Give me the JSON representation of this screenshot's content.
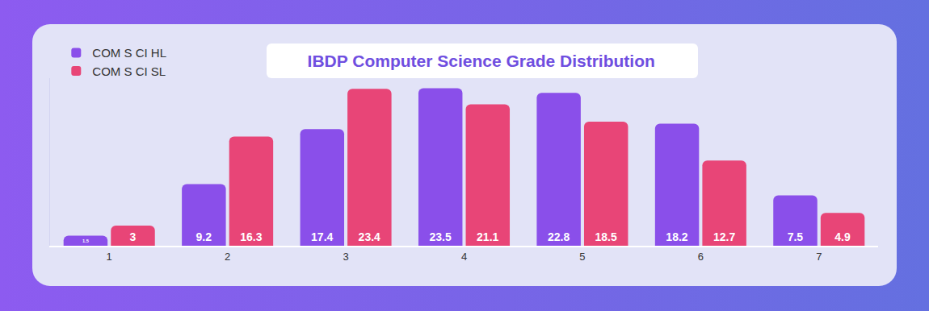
{
  "chart_data": {
    "type": "bar",
    "title": "IBDP Computer Science Grade Distribution",
    "categories": [
      "1",
      "2",
      "3",
      "4",
      "5",
      "6",
      "7"
    ],
    "series": [
      {
        "name": "COM S CI HL",
        "color": "#8a4fea",
        "values": [
          1.5,
          9.2,
          17.4,
          23.5,
          22.8,
          18.2,
          7.5
        ]
      },
      {
        "name": "COM S CI SL",
        "color": "#e84577",
        "values": [
          3,
          16.3,
          23.4,
          21.1,
          18.5,
          12.7,
          4.9
        ]
      }
    ],
    "ylim": [
      0,
      25
    ],
    "yticks": [],
    "grid": false,
    "legend": "top-left",
    "data_labels": true,
    "tick_labels": "x"
  }
}
